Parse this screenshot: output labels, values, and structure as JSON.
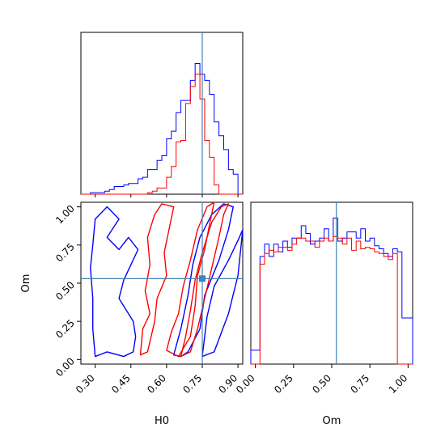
{
  "colors": {
    "series_a": "#0000ff",
    "series_b": "#ff0000",
    "truth": "#4682b4"
  },
  "chart_data": [
    {
      "type": "histogram",
      "panel": "H0 marginal",
      "xlim": [
        0.24,
        0.92
      ],
      "ylim": [
        0,
        1.0
      ],
      "bin_edges": [
        0.24,
        0.26,
        0.28,
        0.3,
        0.32,
        0.34,
        0.36,
        0.38,
        0.4,
        0.42,
        0.44,
        0.46,
        0.48,
        0.5,
        0.52,
        0.54,
        0.56,
        0.58,
        0.6,
        0.62,
        0.64,
        0.66,
        0.68,
        0.7,
        0.72,
        0.74,
        0.76,
        0.78,
        0.8,
        0.82,
        0.84,
        0.86,
        0.88,
        0.9,
        0.92
      ],
      "series": [
        {
          "color": "blue",
          "values": [
            0.0,
            0.0,
            0.01,
            0.01,
            0.01,
            0.02,
            0.03,
            0.05,
            0.05,
            0.06,
            0.07,
            0.07,
            0.1,
            0.11,
            0.16,
            0.16,
            0.22,
            0.25,
            0.36,
            0.41,
            0.53,
            0.61,
            0.61,
            0.74,
            0.85,
            0.78,
            0.74,
            0.65,
            0.47,
            0.38,
            0.29,
            0.16,
            0.13,
            0.0
          ]
        },
        {
          "color": "red",
          "values": [
            0.0,
            0.0,
            0.0,
            0.0,
            0.0,
            0.0,
            0.0,
            0.0,
            0.0,
            0.0,
            0.0,
            0.0,
            0.0,
            0.0,
            0.01,
            0.02,
            0.04,
            0.04,
            0.11,
            0.18,
            0.34,
            0.35,
            0.59,
            0.7,
            0.78,
            0.62,
            0.35,
            0.24,
            0.06,
            0.0,
            0.0,
            0.0,
            0.0,
            0.0
          ]
        }
      ],
      "truth_x": 0.75
    },
    {
      "type": "contour",
      "panel": "H0 vs Om",
      "xlabel": "H0",
      "ylabel": "Om",
      "xlim": [
        0.24,
        0.92
      ],
      "ylim": [
        -0.03,
        1.03
      ],
      "xticks": [
        "0.30",
        "0.45",
        "0.60",
        "0.75",
        "0.90"
      ],
      "yticks": [
        "0.00",
        "0.25",
        "0.50",
        "0.75",
        "1.00"
      ],
      "contours": [
        {
          "color": "blue",
          "points": [
            [
              0.3,
              0.02
            ],
            [
              0.35,
              0.05
            ],
            [
              0.42,
              0.02
            ],
            [
              0.46,
              0.05
            ],
            [
              0.47,
              0.15
            ],
            [
              0.46,
              0.25
            ],
            [
              0.4,
              0.4
            ],
            [
              0.42,
              0.52
            ],
            [
              0.45,
              0.62
            ],
            [
              0.48,
              0.72
            ],
            [
              0.44,
              0.8
            ],
            [
              0.4,
              0.72
            ],
            [
              0.35,
              0.8
            ],
            [
              0.4,
              0.92
            ],
            [
              0.35,
              1.0
            ],
            [
              0.3,
              0.92
            ],
            [
              0.29,
              0.75
            ],
            [
              0.28,
              0.6
            ],
            [
              0.29,
              0.4
            ],
            [
              0.29,
              0.2
            ],
            [
              0.3,
              0.02
            ]
          ]
        },
        {
          "color": "blue",
          "points": [
            [
              0.63,
              0.03
            ],
            [
              0.66,
              0.02
            ],
            [
              0.69,
              0.05
            ],
            [
              0.74,
              0.2
            ],
            [
              0.76,
              0.42
            ],
            [
              0.82,
              0.65
            ],
            [
              0.86,
              0.85
            ],
            [
              0.88,
              1.0
            ],
            [
              0.84,
              1.02
            ],
            [
              0.79,
              0.95
            ],
            [
              0.74,
              0.8
            ],
            [
              0.71,
              0.62
            ],
            [
              0.69,
              0.42
            ],
            [
              0.66,
              0.2
            ],
            [
              0.63,
              0.03
            ]
          ]
        },
        {
          "color": "blue",
          "points": [
            [
              0.75,
              0.02
            ],
            [
              0.8,
              0.05
            ],
            [
              0.86,
              0.3
            ],
            [
              0.9,
              0.55
            ],
            [
              0.92,
              0.85
            ],
            [
              0.9,
              0.78
            ],
            [
              0.86,
              0.65
            ],
            [
              0.8,
              0.48
            ],
            [
              0.77,
              0.28
            ],
            [
              0.75,
              0.02
            ]
          ]
        },
        {
          "color": "red",
          "points": [
            [
              0.49,
              0.03
            ],
            [
              0.52,
              0.05
            ],
            [
              0.55,
              0.25
            ],
            [
              0.56,
              0.4
            ],
            [
              0.6,
              0.55
            ],
            [
              0.59,
              0.7
            ],
            [
              0.61,
              0.85
            ],
            [
              0.63,
              1.0
            ],
            [
              0.58,
              1.02
            ],
            [
              0.55,
              0.95
            ],
            [
              0.52,
              0.8
            ],
            [
              0.53,
              0.62
            ],
            [
              0.51,
              0.45
            ],
            [
              0.53,
              0.3
            ],
            [
              0.5,
              0.2
            ],
            [
              0.49,
              0.03
            ]
          ]
        },
        {
          "color": "red",
          "points": [
            [
              0.66,
              0.02
            ],
            [
              0.7,
              0.05
            ],
            [
              0.73,
              0.2
            ],
            [
              0.76,
              0.4
            ],
            [
              0.79,
              0.6
            ],
            [
              0.82,
              0.8
            ],
            [
              0.84,
              0.95
            ],
            [
              0.86,
              1.02
            ],
            [
              0.83,
              1.0
            ],
            [
              0.79,
              0.9
            ],
            [
              0.75,
              0.7
            ],
            [
              0.72,
              0.52
            ],
            [
              0.7,
              0.32
            ],
            [
              0.68,
              0.15
            ],
            [
              0.66,
              0.02
            ]
          ]
        },
        {
          "color": "red",
          "points": [
            [
              0.6,
              0.06
            ],
            [
              0.65,
              0.02
            ],
            [
              0.7,
              0.15
            ],
            [
              0.72,
              0.35
            ],
            [
              0.73,
              0.55
            ],
            [
              0.76,
              0.72
            ],
            [
              0.78,
              0.88
            ],
            [
              0.8,
              1.03
            ],
            [
              0.77,
              1.0
            ],
            [
              0.73,
              0.85
            ],
            [
              0.7,
              0.65
            ],
            [
              0.67,
              0.48
            ],
            [
              0.65,
              0.3
            ],
            [
              0.62,
              0.18
            ],
            [
              0.6,
              0.06
            ]
          ]
        }
      ],
      "truth_point": [
        0.75,
        0.53
      ]
    },
    {
      "type": "histogram",
      "panel": "Om marginal",
      "xlabel": "Om",
      "xlim": [
        -0.03,
        1.03
      ],
      "ylim": [
        0,
        1.0
      ],
      "xticks": [
        "0.00",
        "0.25",
        "0.50",
        "0.75",
        "1.00"
      ],
      "bin_edges": [
        -0.03,
        0.0,
        0.03,
        0.06,
        0.09,
        0.12,
        0.15,
        0.18,
        0.21,
        0.24,
        0.27,
        0.3,
        0.33,
        0.36,
        0.39,
        0.42,
        0.45,
        0.48,
        0.51,
        0.54,
        0.57,
        0.6,
        0.63,
        0.66,
        0.69,
        0.72,
        0.75,
        0.78,
        0.81,
        0.84,
        0.87,
        0.9,
        0.93,
        0.96,
        0.99,
        1.03
      ],
      "series": [
        {
          "color": "blue",
          "values": [
            0.09,
            0.09,
            0.7,
            0.78,
            0.7,
            0.78,
            0.73,
            0.8,
            0.76,
            0.82,
            0.82,
            0.9,
            0.85,
            0.78,
            0.8,
            0.82,
            0.88,
            0.8,
            0.95,
            0.8,
            0.82,
            0.86,
            0.86,
            0.82,
            0.88,
            0.8,
            0.82,
            0.77,
            0.75,
            0.72,
            0.7,
            0.75,
            0.73,
            0.3,
            0.3
          ]
        },
        {
          "color": "red",
          "values": [
            0.0,
            0.0,
            0.65,
            0.72,
            0.74,
            0.73,
            0.76,
            0.76,
            0.74,
            0.78,
            0.82,
            0.82,
            0.8,
            0.8,
            0.76,
            0.8,
            0.82,
            0.8,
            0.83,
            0.82,
            0.78,
            0.82,
            0.74,
            0.8,
            0.75,
            0.76,
            0.75,
            0.73,
            0.72,
            0.7,
            0.68,
            0.72,
            0.0,
            0.0,
            0.0
          ]
        }
      ],
      "truth_x": 0.53
    }
  ]
}
